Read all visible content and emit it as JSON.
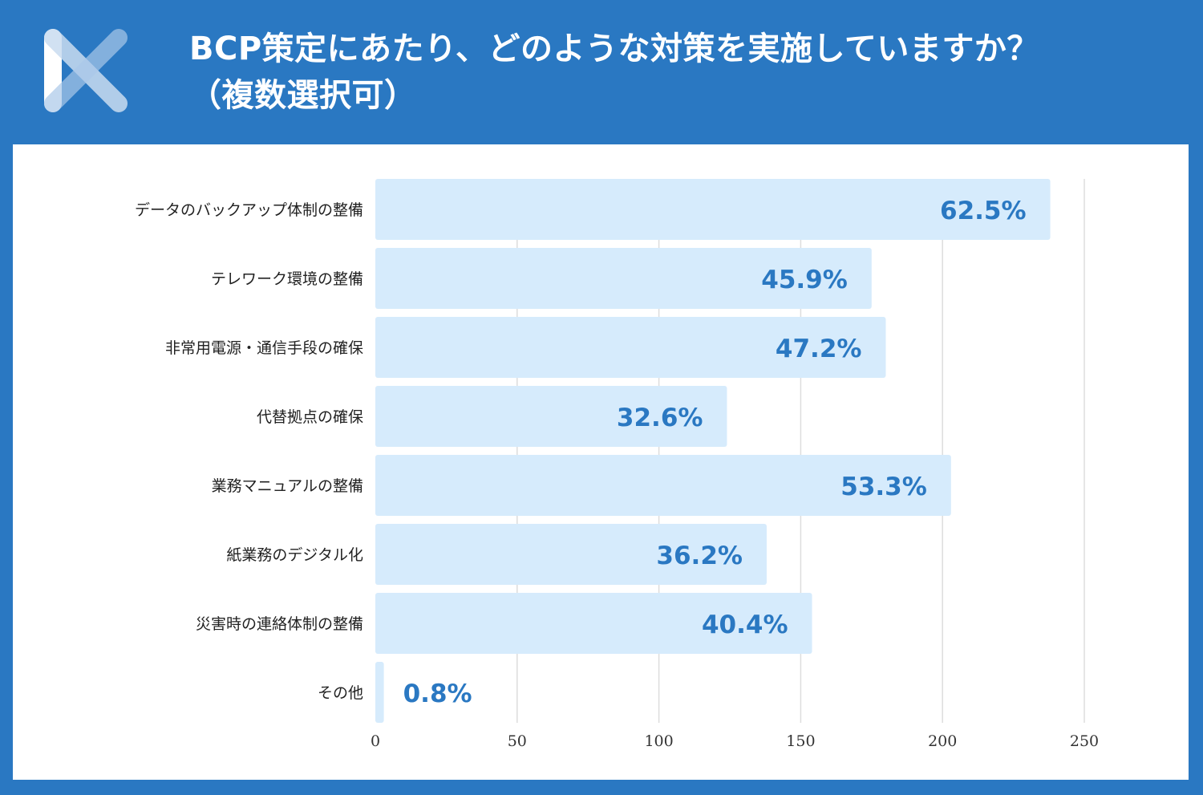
{
  "header": {
    "title_line1": "BCP策定にあたり、どのような対策を実施していますか？",
    "title_line2": "（複数選択可）",
    "logo_icon": "x-logo-icon"
  },
  "colors": {
    "background": "#2a78c2",
    "bar": "#d6ebfc",
    "value_label": "#2a78c2",
    "grid": "#dddddd"
  },
  "chart_data": {
    "type": "bar",
    "orientation": "horizontal",
    "categories": [
      "データのバックアップ体制の整備",
      "テレワーク環境の整備",
      "非常用電源・通信手段の確保",
      "代替拠点の確保",
      "業務マニュアルの整備",
      "紙業務のデジタル化",
      "災害時の連絡体制の整備",
      "その他"
    ],
    "values": [
      238,
      175,
      180,
      124,
      203,
      138,
      154,
      3
    ],
    "data_labels": [
      "62.5%",
      "45.9%",
      "47.2%",
      "32.6%",
      "53.3%",
      "36.2%",
      "40.4%",
      "0.8%"
    ],
    "xlim": [
      0,
      250
    ],
    "xticks": [
      "0",
      "50",
      "100",
      "150",
      "200",
      "250"
    ],
    "grid": true,
    "title": "",
    "xlabel": "",
    "ylabel": ""
  }
}
